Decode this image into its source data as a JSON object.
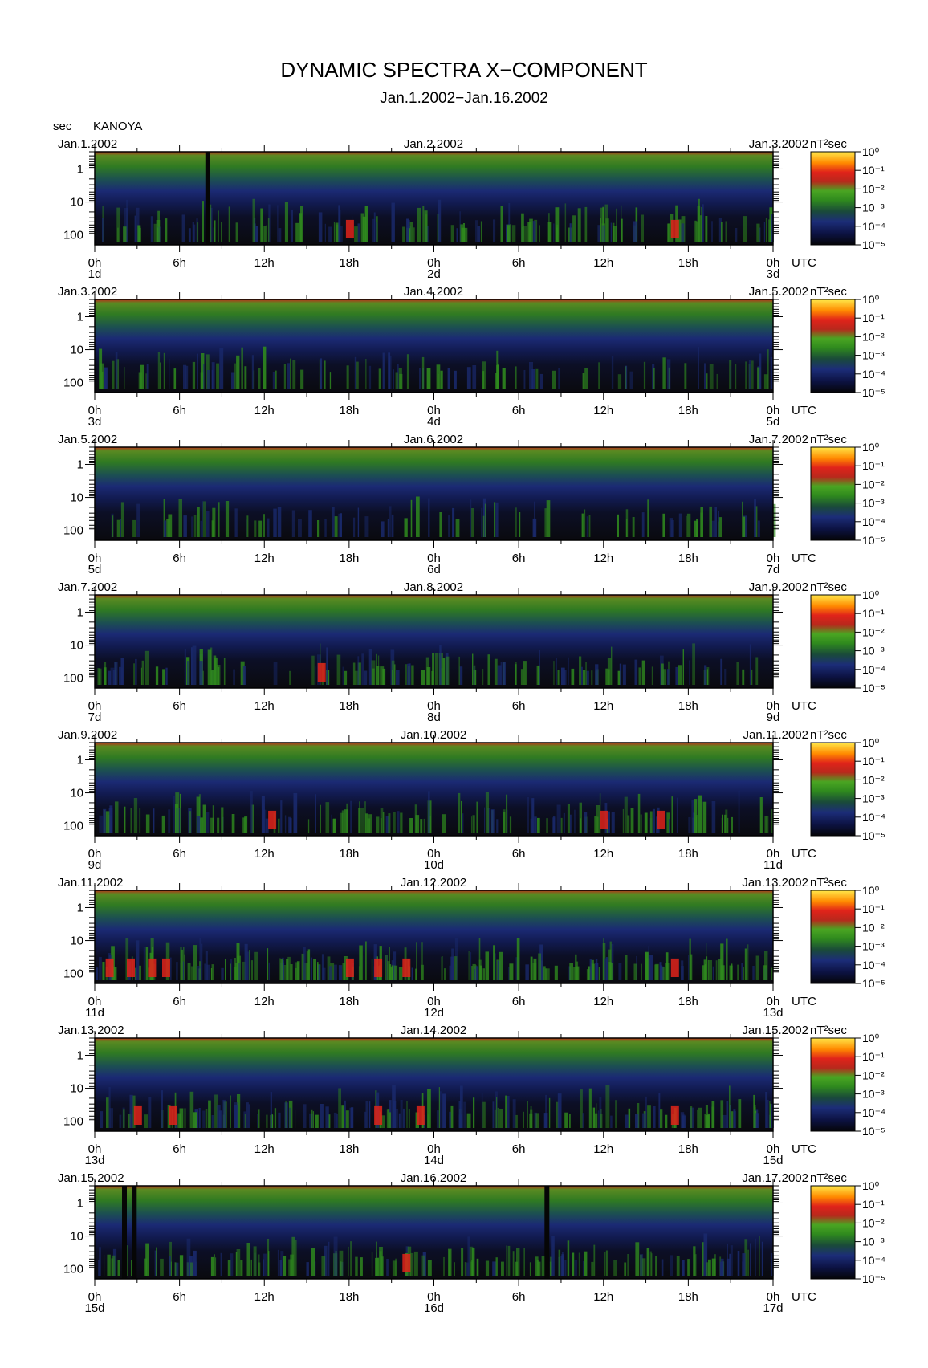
{
  "title": "DYNAMIC SPECTRA X−COMPONENT",
  "subtitle": "Jan.1.2002−Jan.16.2002",
  "y_unit": "sec",
  "station": "KANOYA",
  "color_unit": "nT²sec",
  "utc_label": "UTC",
  "hour_ticks": [
    "0h",
    "6h",
    "12h",
    "18h",
    "0h",
    "6h",
    "12h",
    "18h",
    "0h"
  ],
  "y_ticks": [
    "1",
    "10",
    "100"
  ],
  "colorbar_ticks": [
    "10⁰",
    "10⁻¹",
    "10⁻²",
    "10⁻³",
    "10⁻⁴",
    "10⁻⁵"
  ],
  "colors": {
    "background_low": "#0b0b0d",
    "blue": "#1a2a6e",
    "green": "#2f8a1e",
    "red": "#e0231a",
    "orange": "#ff8a00",
    "yellow": "#ffe84a"
  },
  "chart_data": [
    {
      "type": "heatmap",
      "start_date": "Jan.1.2002",
      "mid_date": "Jan.2.2002",
      "end_date": "Jan.3.2002",
      "day_labels": [
        "1d",
        "2d",
        "3d"
      ],
      "x_range_hours": [
        0,
        48
      ],
      "y_ticks_sec": [
        1,
        10,
        100
      ],
      "y_scale": "log",
      "color_range_nT2sec": [
        1e-05,
        1
      ],
      "color_scale": "log",
      "activity": 0.5,
      "hot_hours": [
        18,
        41
      ],
      "gap_hours": [
        8
      ]
    },
    {
      "type": "heatmap",
      "start_date": "Jan.3.2002",
      "mid_date": "Jan.4.2002",
      "end_date": "Jan.5.2002",
      "day_labels": [
        "3d",
        "4d",
        "5d"
      ],
      "x_range_hours": [
        0,
        48
      ],
      "y_ticks_sec": [
        1,
        10,
        100
      ],
      "y_scale": "log",
      "color_range_nT2sec": [
        1e-05,
        1
      ],
      "color_scale": "log",
      "activity": 0.3,
      "hot_hours": [],
      "gap_hours": []
    },
    {
      "type": "heatmap",
      "start_date": "Jan.5.2002",
      "mid_date": "Jan.6.2002",
      "end_date": "Jan.7.2002",
      "day_labels": [
        "5d",
        "6d",
        "7d"
      ],
      "x_range_hours": [
        0,
        48
      ],
      "y_ticks_sec": [
        1,
        10,
        100
      ],
      "y_scale": "log",
      "color_range_nT2sec": [
        1e-05,
        1
      ],
      "color_scale": "log",
      "activity": 0.2,
      "hot_hours": [],
      "gap_hours": []
    },
    {
      "type": "heatmap",
      "start_date": "Jan.7.2002",
      "mid_date": "Jan.8.2002",
      "end_date": "Jan.9.2002",
      "day_labels": [
        "7d",
        "8d",
        "9d"
      ],
      "x_range_hours": [
        0,
        48
      ],
      "y_ticks_sec": [
        1,
        10,
        100
      ],
      "y_scale": "log",
      "color_range_nT2sec": [
        1e-05,
        1
      ],
      "color_scale": "log",
      "activity": 0.45,
      "hot_hours": [
        16
      ],
      "gap_hours": []
    },
    {
      "type": "heatmap",
      "start_date": "Jan.9.2002",
      "mid_date": "Jan.10.2002",
      "end_date": "Jan.11.2002",
      "day_labels": [
        "9d",
        "10d",
        "11d"
      ],
      "x_range_hours": [
        0,
        48
      ],
      "y_ticks_sec": [
        1,
        10,
        100
      ],
      "y_scale": "log",
      "color_range_nT2sec": [
        1e-05,
        1
      ],
      "color_scale": "log",
      "activity": 0.5,
      "hot_hours": [
        12.5,
        36,
        40
      ],
      "gap_hours": []
    },
    {
      "type": "heatmap",
      "start_date": "Jan.11.2002",
      "mid_date": "Jan.12.2002",
      "end_date": "Jan.13.2002",
      "day_labels": [
        "11d",
        "12d",
        "13d"
      ],
      "x_range_hours": [
        0,
        48
      ],
      "y_ticks_sec": [
        1,
        10,
        100
      ],
      "y_scale": "log",
      "color_range_nT2sec": [
        1e-05,
        1
      ],
      "color_scale": "log",
      "activity": 0.85,
      "hot_hours": [
        1,
        2.5,
        4,
        5,
        18,
        20,
        22,
        41
      ],
      "gap_hours": []
    },
    {
      "type": "heatmap",
      "start_date": "Jan.13.2002",
      "mid_date": "Jan.14.2002",
      "end_date": "Jan.15.2002",
      "day_labels": [
        "13d",
        "14d",
        "15d"
      ],
      "x_range_hours": [
        0,
        48
      ],
      "y_ticks_sec": [
        1,
        10,
        100
      ],
      "y_scale": "log",
      "color_range_nT2sec": [
        1e-05,
        1
      ],
      "color_scale": "log",
      "activity": 0.65,
      "hot_hours": [
        3,
        5.5,
        20,
        23,
        41
      ],
      "gap_hours": []
    },
    {
      "type": "heatmap",
      "start_date": "Jan.15.2002",
      "mid_date": "Jan.16.2002",
      "end_date": "Jan.17.2002",
      "day_labels": [
        "15d",
        "16d",
        "17d"
      ],
      "x_range_hours": [
        0,
        48
      ],
      "y_ticks_sec": [
        1,
        10,
        100
      ],
      "y_scale": "log",
      "color_range_nT2sec": [
        1e-05,
        1
      ],
      "color_scale": "log",
      "activity": 0.55,
      "hot_hours": [
        22
      ],
      "gap_hours": [
        2.1,
        2.8,
        32
      ]
    }
  ]
}
